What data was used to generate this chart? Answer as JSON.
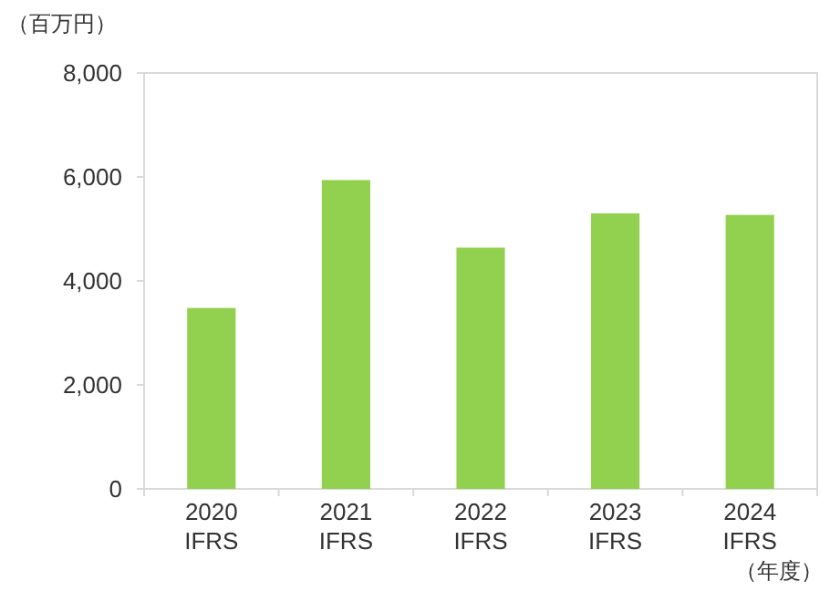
{
  "chart_data": {
    "type": "bar",
    "ylabel": "（百万円）",
    "xlabel": "（年度）",
    "categories": [
      "2020\nIFRS",
      "2021\nIFRS",
      "2022\nIFRS",
      "2023\nIFRS",
      "2024\nIFRS"
    ],
    "values": [
      3480,
      5940,
      4640,
      5300,
      5270
    ],
    "color": "#92d050",
    "ylim": [
      0,
      8000
    ],
    "yticks": [
      0,
      {
        "value": 2000,
        "label": "2,000"
      },
      {
        "value": 4000,
        "label": "4,000"
      },
      {
        "value": 6000,
        "label": "6,000"
      },
      {
        "value": 8000,
        "label": "8,000"
      }
    ]
  }
}
